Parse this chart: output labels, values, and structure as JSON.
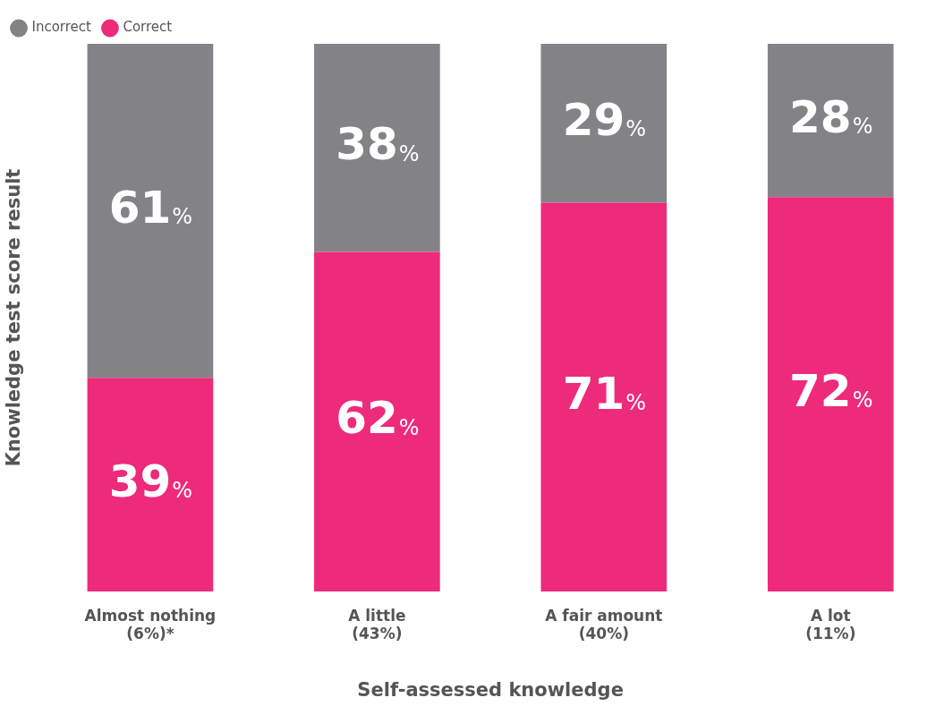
{
  "chart_data": {
    "type": "bar",
    "stacked": true,
    "xlabel": "Self-assessed knowledge",
    "ylabel": "Knowledge test score result",
    "categories": [
      "Almost nothing\n(6%)*",
      "A little\n(43%)",
      "A fair amount\n(40%)",
      "A lot\n(11%)"
    ],
    "series": [
      {
        "name": "Correct",
        "color": "#ee2a7b",
        "values": [
          39,
          62,
          71,
          72
        ],
        "value_labels": [
          "39%",
          "62%",
          "71%",
          "72%"
        ]
      },
      {
        "name": "Incorrect",
        "color": "#838387",
        "values": [
          61,
          38,
          29,
          28
        ],
        "value_labels": [
          "61%",
          "38%",
          "29%",
          "28%"
        ]
      }
    ],
    "legend": "top left",
    "tick_labels": "x",
    "grid": false
  }
}
